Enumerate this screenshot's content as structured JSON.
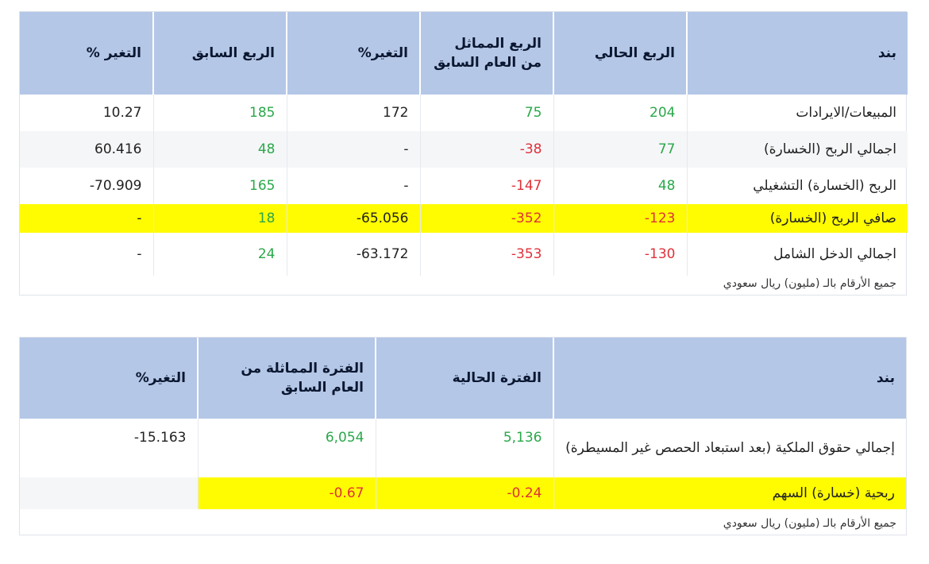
{
  "table1": {
    "headers": [
      "بند",
      "الربع الحالي",
      "الربع المماثل من العام السابق",
      "التغير%",
      "الربع السابق",
      "التغير %"
    ],
    "rows": [
      {
        "label": "المبيعات/الايرادات",
        "v1": "204",
        "v2": "75",
        "v3": "172",
        "v4": "185",
        "v5": "10.27"
      },
      {
        "label": "اجمالي الربح (الخسارة)",
        "v1": "77",
        "v2": "38-",
        "v3": "-",
        "v4": "48",
        "v5": "60.416"
      },
      {
        "label": "الربح (الخسارة) التشغيلي",
        "v1": "48",
        "v2": "147-",
        "v3": "-",
        "v4": "165",
        "v5": "70.909-"
      },
      {
        "label": "صافي الربح (الخسارة)",
        "v1": "123-",
        "v2": "352-",
        "v3": "65.056-",
        "v4": "18",
        "v5": "-"
      },
      {
        "label": "اجمالي الدخل الشامل",
        "v1": "130-",
        "v2": "353-",
        "v3": "63.172-",
        "v4": "24",
        "v5": "-"
      }
    ],
    "note": "جميع الأرقام بالـ (مليون) ريال سعودي"
  },
  "table2": {
    "headers": [
      "بند",
      "الفترة الحالية",
      "الفترة المماثلة من العام السابق",
      "التغير%"
    ],
    "rows": [
      {
        "label": "إجمالي حقوق الملكية (بعد استبعاد الحصص غير المسيطرة)",
        "v1": "5,136",
        "v2": "6,054",
        "v3": "15.163-"
      },
      {
        "label": "ربحية (خسارة) السهم",
        "v1": "0.24-",
        "v2": "0.67-",
        "v3": ""
      }
    ],
    "note": "جميع الأرقام بالـ (مليون) ريال سعودي"
  },
  "colors": {
    "header_bg": "#b4c7e7",
    "highlight": "#fffb00",
    "positive": "#2aa84a",
    "negative": "#e0303a"
  }
}
